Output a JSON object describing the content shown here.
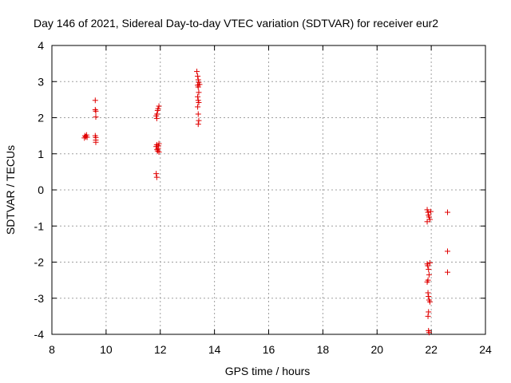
{
  "chart_data": {
    "type": "scatter",
    "title": "Day 146 of 2021, Sidereal Day-to-day VTEC variation (SDTVAR) for receiver eur2",
    "xlabel": "GPS time / hours",
    "ylabel": "SDTVAR / TECUs",
    "xlim": [
      8,
      24
    ],
    "ylim": [
      -4,
      4
    ],
    "xticks": [
      8,
      10,
      12,
      14,
      16,
      18,
      20,
      22,
      24
    ],
    "yticks": [
      -4,
      -3,
      -2,
      -1,
      0,
      1,
      2,
      3,
      4
    ],
    "xtick_labels": [
      "8",
      "10",
      "12",
      "14",
      "16",
      "18",
      "20",
      "22",
      "24"
    ],
    "ytick_labels": [
      "-4",
      "-3",
      "-2",
      "-1",
      "0",
      "1",
      "2",
      "3",
      "4"
    ],
    "grid": true,
    "marker": "+",
    "marker_color": "#e00000",
    "series": [
      {
        "name": "SDTVAR",
        "points": [
          [
            9.2,
            1.44
          ],
          [
            9.22,
            1.5
          ],
          [
            9.25,
            1.47
          ],
          [
            9.28,
            1.52
          ],
          [
            9.3,
            1.46
          ],
          [
            9.6,
            2.48
          ],
          [
            9.6,
            2.22
          ],
          [
            9.62,
            2.18
          ],
          [
            9.62,
            2.02
          ],
          [
            9.6,
            1.5
          ],
          [
            9.62,
            1.45
          ],
          [
            9.62,
            1.38
          ],
          [
            9.62,
            1.32
          ],
          [
            11.85,
            2.05
          ],
          [
            11.87,
            1.98
          ],
          [
            11.88,
            2.1
          ],
          [
            11.9,
            2.2
          ],
          [
            11.92,
            2.25
          ],
          [
            11.95,
            2.32
          ],
          [
            11.85,
            1.2
          ],
          [
            11.87,
            1.25
          ],
          [
            11.88,
            1.12
          ],
          [
            11.9,
            1.08
          ],
          [
            11.92,
            1.15
          ],
          [
            11.93,
            1.22
          ],
          [
            11.95,
            1.28
          ],
          [
            11.95,
            1.05
          ],
          [
            11.85,
            0.45
          ],
          [
            11.87,
            0.35
          ],
          [
            13.35,
            3.28
          ],
          [
            13.38,
            3.15
          ],
          [
            13.4,
            3.05
          ],
          [
            13.42,
            2.98
          ],
          [
            13.38,
            2.9
          ],
          [
            13.4,
            2.85
          ],
          [
            13.45,
            2.92
          ],
          [
            13.42,
            2.7
          ],
          [
            13.38,
            2.58
          ],
          [
            13.4,
            2.48
          ],
          [
            13.42,
            2.42
          ],
          [
            13.38,
            2.3
          ],
          [
            13.4,
            2.1
          ],
          [
            13.42,
            1.92
          ],
          [
            13.4,
            1.82
          ],
          [
            21.85,
            -0.55
          ],
          [
            21.88,
            -0.62
          ],
          [
            21.9,
            -0.7
          ],
          [
            21.92,
            -0.75
          ],
          [
            21.95,
            -0.82
          ],
          [
            21.85,
            -0.88
          ],
          [
            21.98,
            -0.6
          ],
          [
            21.85,
            -2.05
          ],
          [
            21.87,
            -2.1
          ],
          [
            21.9,
            -2.2
          ],
          [
            21.92,
            -2.35
          ],
          [
            21.88,
            -2.5
          ],
          [
            21.85,
            -2.55
          ],
          [
            21.95,
            -2.02
          ],
          [
            21.88,
            -2.85
          ],
          [
            21.9,
            -2.95
          ],
          [
            21.92,
            -3.05
          ],
          [
            21.95,
            -3.1
          ],
          [
            21.9,
            -3.38
          ],
          [
            21.88,
            -3.5
          ],
          [
            21.9,
            -3.9
          ],
          [
            21.92,
            -3.95
          ],
          [
            22.6,
            -0.62
          ],
          [
            22.6,
            -1.7
          ],
          [
            22.6,
            -2.28
          ]
        ]
      }
    ]
  }
}
